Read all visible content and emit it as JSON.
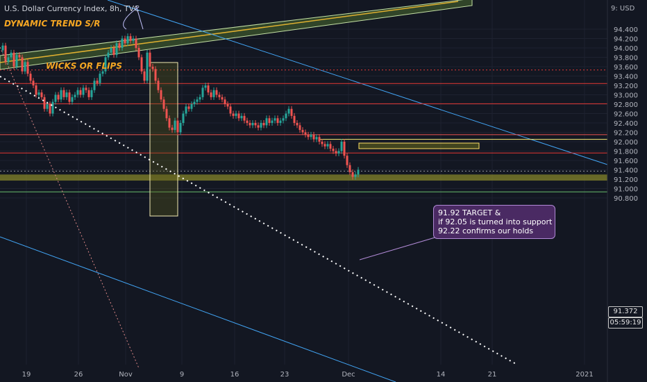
{
  "header": {
    "symbol_line": "U.S. Dollar Currency Index, 8h, TVC"
  },
  "annotations": {
    "trend_label": "DYNAMIC TREND S/R",
    "wicks_label": "WICKS OR FLIPS",
    "callout_lines": [
      "91.92 TARGET &",
      "if 92.05 is turned into support",
      "92.22 confirms our holds"
    ]
  },
  "price_axis": {
    "currency": "USD",
    "current_price": "91.372",
    "countdown": "05:59:19"
  },
  "chart_data": {
    "type": "candlestick",
    "title": "U.S. Dollar Currency Index, 8h, TVC",
    "y_ticks": [
      "94.400",
      "94.200",
      "94.000",
      "93.800",
      "93.600",
      "93.400",
      "93.200",
      "93.000",
      "92.800",
      "92.600",
      "92.400",
      "92.200",
      "92.000",
      "91.800",
      "91.600",
      "91.400",
      "91.200",
      "91.000",
      "90.800"
    ],
    "x_ticks": [
      "19",
      "26",
      "Nov",
      "9",
      "16",
      "23",
      "Dec",
      "14",
      "21",
      "2021"
    ],
    "ylim": [
      90.8,
      94.6
    ],
    "horizontal_levels": [
      {
        "price": 93.53,
        "color": "#e53935",
        "style": "dotted"
      },
      {
        "price": 93.24,
        "color": "#e53935",
        "style": "solid"
      },
      {
        "price": 92.81,
        "color": "#e53935",
        "style": "solid"
      },
      {
        "price": 92.15,
        "color": "#ef5350",
        "style": "solid"
      },
      {
        "price": 92.05,
        "color": "#fff176",
        "style": "solid"
      },
      {
        "price": 91.76,
        "color": "#e53935",
        "style": "solid"
      },
      {
        "price": 90.93,
        "color": "#66bb6a",
        "style": "solid"
      },
      {
        "price": 91.372,
        "color": "#9598a1",
        "style": "dotted"
      }
    ],
    "zones": [
      {
        "price_top": 91.3,
        "price_bottom": 91.17,
        "color": "#8b8b2a"
      },
      {
        "price_top": 91.97,
        "price_bottom": 91.92,
        "color": "#9a9a1a"
      }
    ],
    "colors": {
      "up": "#26a69a",
      "down": "#ef5350",
      "trend_channel": "#c5e1a5",
      "diagonal_blue": "#42a5f5"
    }
  }
}
